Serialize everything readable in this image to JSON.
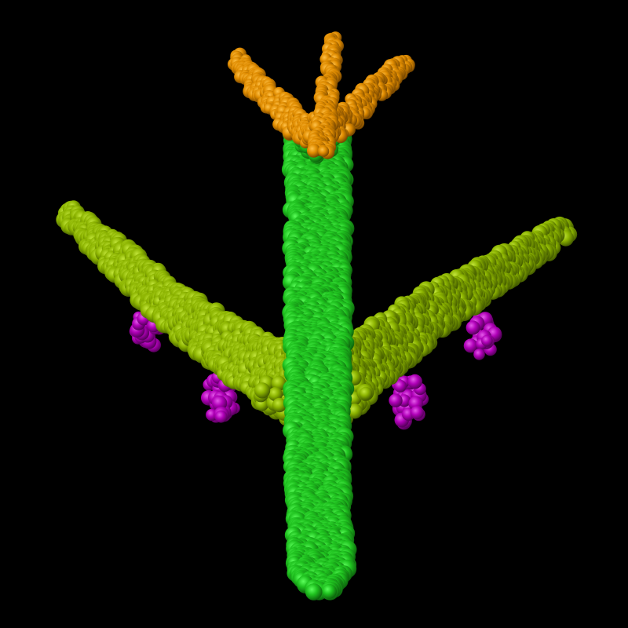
{
  "scene": {
    "subject": "airplane-point-cloud",
    "background_color": "#000000",
    "parts": [
      {
        "name": "fuselage",
        "color": "#1fc21f",
        "highlight": "#5cff5c",
        "shadow": "#0b5a0b"
      },
      {
        "name": "wings",
        "color": "#8cb400",
        "highlight": "#c2e53a",
        "shadow": "#3c5200"
      },
      {
        "name": "tail",
        "color": "#e08c00",
        "highlight": "#ffc24a",
        "shadow": "#6a3e00"
      },
      {
        "name": "engines",
        "color": "#b000b8",
        "highlight": "#e45aea",
        "shadow": "#4c0050"
      }
    ]
  }
}
